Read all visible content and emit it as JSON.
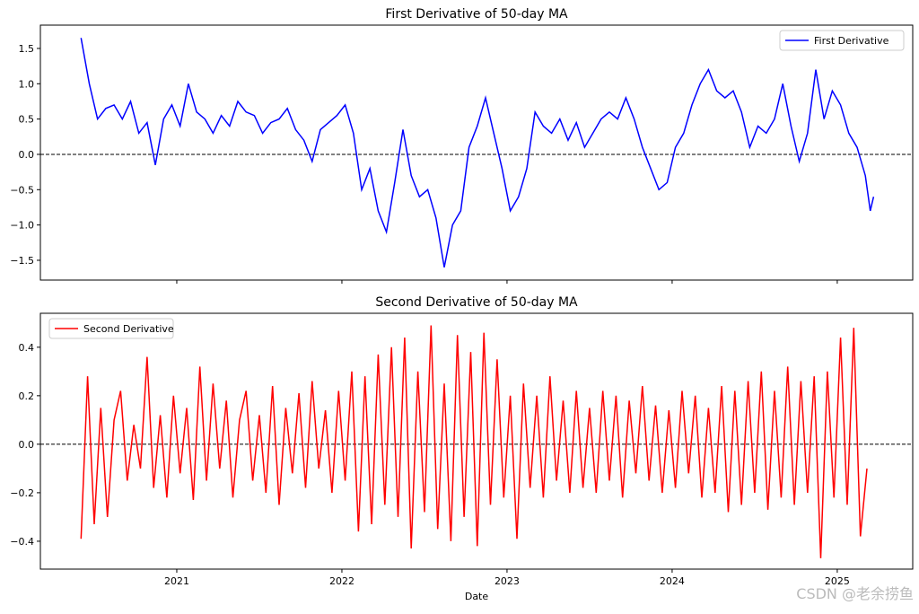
{
  "chart_data": [
    {
      "type": "line",
      "title": "First Derivative of 50-day MA",
      "legend": "upper right",
      "show_xtick_labels": false,
      "hline": 0,
      "x": [
        2020.42,
        2020.47,
        2020.52,
        2020.57,
        2020.62,
        2020.67,
        2020.72,
        2020.77,
        2020.82,
        2020.87,
        2020.92,
        2020.97,
        2021.02,
        2021.07,
        2021.12,
        2021.17,
        2021.22,
        2021.27,
        2021.32,
        2021.37,
        2021.42,
        2021.47,
        2021.52,
        2021.57,
        2021.62,
        2021.67,
        2021.72,
        2021.77,
        2021.82,
        2021.87,
        2021.92,
        2021.97,
        2022.02,
        2022.07,
        2022.12,
        2022.17,
        2022.22,
        2022.27,
        2022.32,
        2022.37,
        2022.42,
        2022.47,
        2022.52,
        2022.57,
        2022.62,
        2022.67,
        2022.72,
        2022.77,
        2022.82,
        2022.87,
        2022.92,
        2022.97,
        2023.02,
        2023.07,
        2023.12,
        2023.17,
        2023.22,
        2023.27,
        2023.32,
        2023.37,
        2023.42,
        2023.47,
        2023.52,
        2023.57,
        2023.62,
        2023.67,
        2023.72,
        2023.77,
        2023.82,
        2023.87,
        2023.92,
        2023.97,
        2024.02,
        2024.07,
        2024.12,
        2024.17,
        2024.22,
        2024.27,
        2024.32,
        2024.37,
        2024.42,
        2024.47,
        2024.52,
        2024.57,
        2024.62,
        2024.67,
        2024.72,
        2024.77,
        2024.82,
        2024.87,
        2024.92,
        2024.97,
        2025.02,
        2025.07,
        2025.12,
        2025.17,
        2025.2,
        2025.22
      ],
      "series": [
        {
          "name": "First Derivative",
          "color": "#0000ff",
          "values": [
            1.65,
            1.0,
            0.5,
            0.65,
            0.7,
            0.5,
            0.75,
            0.3,
            0.45,
            -0.15,
            0.5,
            0.7,
            0.4,
            1.0,
            0.6,
            0.5,
            0.3,
            0.55,
            0.4,
            0.75,
            0.6,
            0.55,
            0.3,
            0.45,
            0.5,
            0.65,
            0.35,
            0.2,
            -0.1,
            0.35,
            0.45,
            0.55,
            0.7,
            0.3,
            -0.5,
            -0.2,
            -0.8,
            -1.1,
            -0.4,
            0.35,
            -0.3,
            -0.6,
            -0.5,
            -0.9,
            -1.6,
            -1.0,
            -0.8,
            0.1,
            0.4,
            0.8,
            0.3,
            -0.2,
            -0.8,
            -0.6,
            -0.2,
            0.6,
            0.4,
            0.3,
            0.5,
            0.2,
            0.45,
            0.1,
            0.3,
            0.5,
            0.6,
            0.5,
            0.8,
            0.5,
            0.1,
            -0.2,
            -0.5,
            -0.4,
            0.1,
            0.3,
            0.7,
            1.0,
            1.2,
            0.9,
            0.8,
            0.9,
            0.6,
            0.1,
            0.4,
            0.3,
            0.5,
            1.0,
            0.4,
            -0.1,
            0.3,
            1.2,
            0.5,
            0.9,
            0.7,
            0.3,
            0.1,
            -0.3,
            -0.8,
            -0.6
          ]
        }
      ],
      "xlim": [
        2020.174,
        2025.457
      ],
      "xticks": [
        2021,
        2022,
        2023,
        2024,
        2025
      ],
      "ylim": [
        -1.78,
        1.83
      ],
      "yticks": [
        {
          "value": -1.5,
          "label": "−1.5"
        },
        {
          "value": -1.0,
          "label": "−1.0"
        },
        {
          "value": -0.5,
          "label": "−0.5"
        },
        {
          "value": 0,
          "label": "0.0"
        },
        0.5,
        {
          "value": 1.0,
          "label": "1.0"
        },
        1.5
      ]
    },
    {
      "type": "line",
      "title": "Second Derivative of 50-day MA",
      "xlabel": "Date",
      "legend": "upper left",
      "show_xtick_labels": true,
      "hline": 0,
      "x": [
        2020.42,
        2020.46,
        2020.5,
        2020.54,
        2020.58,
        2020.62,
        2020.66,
        2020.7,
        2020.74,
        2020.78,
        2020.82,
        2020.86,
        2020.9,
        2020.94,
        2020.98,
        2021.02,
        2021.06,
        2021.1,
        2021.14,
        2021.18,
        2021.22,
        2021.26,
        2021.3,
        2021.34,
        2021.38,
        2021.42,
        2021.46,
        2021.5,
        2021.54,
        2021.58,
        2021.62,
        2021.66,
        2021.7,
        2021.74,
        2021.78,
        2021.82,
        2021.86,
        2021.9,
        2021.94,
        2021.98,
        2022.02,
        2022.06,
        2022.1,
        2022.14,
        2022.18,
        2022.22,
        2022.26,
        2022.3,
        2022.34,
        2022.38,
        2022.42,
        2022.46,
        2022.5,
        2022.54,
        2022.58,
        2022.62,
        2022.66,
        2022.7,
        2022.74,
        2022.78,
        2022.82,
        2022.86,
        2022.9,
        2022.94,
        2022.98,
        2023.02,
        2023.06,
        2023.1,
        2023.14,
        2023.18,
        2023.22,
        2023.26,
        2023.3,
        2023.34,
        2023.38,
        2023.42,
        2023.46,
        2023.5,
        2023.54,
        2023.58,
        2023.62,
        2023.66,
        2023.7,
        2023.74,
        2023.78,
        2023.82,
        2023.86,
        2023.9,
        2023.94,
        2023.98,
        2024.02,
        2024.06,
        2024.1,
        2024.14,
        2024.18,
        2024.22,
        2024.26,
        2024.3,
        2024.34,
        2024.38,
        2024.42,
        2024.46,
        2024.5,
        2024.54,
        2024.58,
        2024.62,
        2024.66,
        2024.7,
        2024.74,
        2024.78,
        2024.82,
        2024.86,
        2024.9,
        2024.94,
        2024.98,
        2025.02,
        2025.06,
        2025.1,
        2025.14,
        2025.18
      ],
      "series": [
        {
          "name": "Second Derivative",
          "color": "#ff0000",
          "values": [
            -0.39,
            0.28,
            -0.33,
            0.15,
            -0.3,
            0.1,
            0.22,
            -0.15,
            0.08,
            -0.1,
            0.36,
            -0.18,
            0.12,
            -0.22,
            0.2,
            -0.12,
            0.15,
            -0.23,
            0.32,
            -0.15,
            0.25,
            -0.1,
            0.18,
            -0.22,
            0.1,
            0.22,
            -0.15,
            0.12,
            -0.2,
            0.24,
            -0.25,
            0.15,
            -0.12,
            0.21,
            -0.18,
            0.26,
            -0.1,
            0.14,
            -0.2,
            0.22,
            -0.15,
            0.3,
            -0.36,
            0.28,
            -0.33,
            0.37,
            -0.25,
            0.4,
            -0.3,
            0.44,
            -0.43,
            0.3,
            -0.28,
            0.49,
            -0.35,
            0.25,
            -0.4,
            0.45,
            -0.3,
            0.38,
            -0.42,
            0.46,
            -0.25,
            0.35,
            -0.22,
            0.2,
            -0.39,
            0.25,
            -0.18,
            0.2,
            -0.22,
            0.28,
            -0.15,
            0.18,
            -0.2,
            0.22,
            -0.18,
            0.15,
            -0.2,
            0.22,
            -0.15,
            0.2,
            -0.22,
            0.18,
            -0.12,
            0.24,
            -0.15,
            0.16,
            -0.2,
            0.14,
            -0.18,
            0.22,
            -0.12,
            0.2,
            -0.22,
            0.15,
            -0.2,
            0.24,
            -0.28,
            0.22,
            -0.25,
            0.26,
            -0.2,
            0.3,
            -0.27,
            0.22,
            -0.22,
            0.32,
            -0.25,
            0.26,
            -0.2,
            0.28,
            -0.47,
            0.3,
            -0.22,
            0.44,
            -0.25,
            0.48,
            -0.38,
            -0.1
          ]
        }
      ],
      "xlim": [
        2020.174,
        2025.457
      ],
      "xticks": [
        2021,
        2022,
        2023,
        2024,
        2025
      ],
      "ylim": [
        -0.515,
        0.54
      ],
      "yticks": [
        {
          "value": -0.4,
          "label": "−0.4"
        },
        {
          "value": -0.2,
          "label": "−0.2"
        },
        {
          "value": 0,
          "label": "0.0"
        },
        0.2,
        0.4
      ]
    }
  ],
  "watermark": "CSDN @老余捞鱼"
}
